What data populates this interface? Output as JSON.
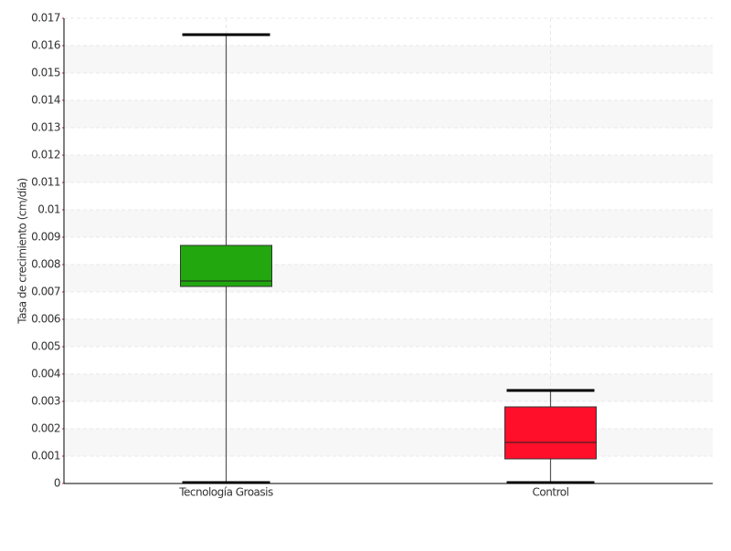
{
  "chart_data": {
    "type": "box",
    "ylabel": "Tasa de crecimiento (cm/día)",
    "categories": [
      "Tecnología Groasis",
      "Control"
    ],
    "boxes": [
      {
        "min": 0,
        "q1": 0.0072,
        "median": 0.0074,
        "q3": 0.0087,
        "max": 0.0164,
        "color": "#22a70f"
      },
      {
        "min": 0,
        "q1": 0.0009,
        "median": 0.0015,
        "q3": 0.0028,
        "max": 0.0034,
        "color": "#ff0f2a"
      }
    ],
    "ylim": [
      0,
      0.017
    ],
    "yticks": [
      0,
      0.001,
      0.002,
      0.003,
      0.004,
      0.005,
      0.006,
      0.007,
      0.008,
      0.009,
      0.01,
      0.011,
      0.012,
      0.013,
      0.014,
      0.015,
      0.016,
      0.017
    ],
    "grid": true
  }
}
